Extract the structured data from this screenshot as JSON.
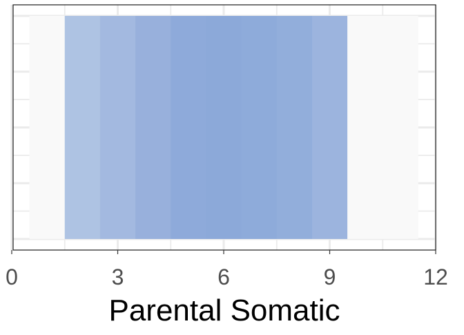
{
  "chart_data": {
    "type": "heatmap",
    "title": "",
    "xlabel": "Parental Somatic",
    "ylabel": "",
    "xlim": [
      0,
      12
    ],
    "x_ticks": [
      0,
      3,
      6,
      9,
      12
    ],
    "x_tick_labels": [
      "0",
      "3",
      "6",
      "9",
      "12"
    ],
    "grid": true,
    "legend": "none",
    "tiles": [
      {
        "x": 1,
        "fill": "#f9f9f9"
      },
      {
        "x": 2,
        "fill": "#aec3e3"
      },
      {
        "x": 3,
        "fill": "#a3b9e0"
      },
      {
        "x": 4,
        "fill": "#98b0dc"
      },
      {
        "x": 5,
        "fill": "#8eaada"
      },
      {
        "x": 6,
        "fill": "#8ca9d9"
      },
      {
        "x": 7,
        "fill": "#8eabda"
      },
      {
        "x": 8,
        "fill": "#92aedb"
      },
      {
        "x": 9,
        "fill": "#9cb4de"
      },
      {
        "x": 10,
        "fill": "#f9f9f9"
      },
      {
        "x": 11,
        "fill": "#f9f9f9"
      }
    ],
    "tile_width": 1
  }
}
